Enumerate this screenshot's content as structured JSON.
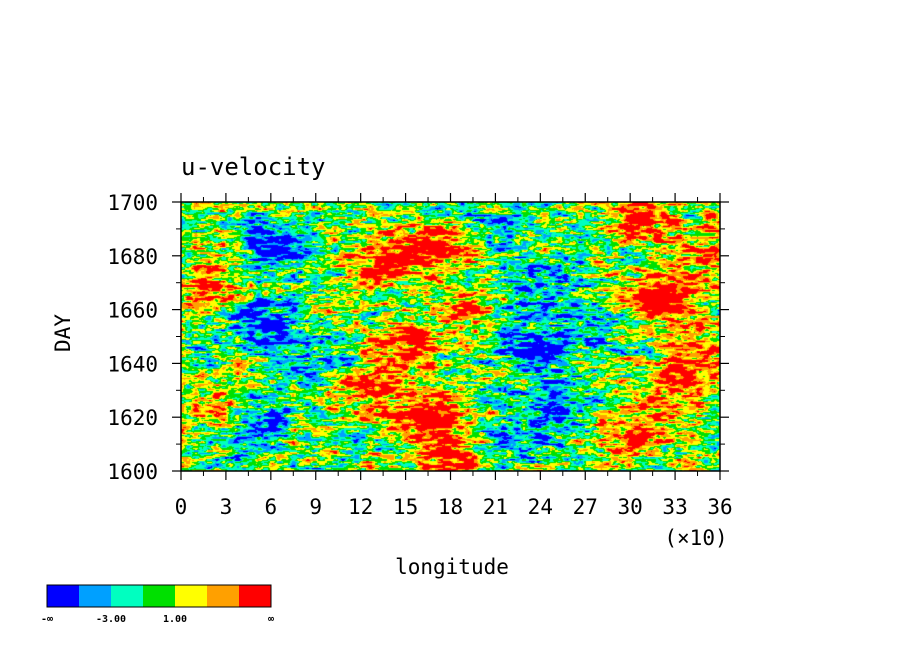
{
  "chart_data": {
    "type": "heatmap",
    "title": "u-velocity",
    "xlabel": "longitude",
    "ylabel": "DAY",
    "x_ticks": [
      "0",
      "3",
      "6",
      "9",
      "12",
      "15",
      "18",
      "21",
      "24",
      "27",
      "30",
      "33",
      "36"
    ],
    "x_multiplier": "(×10)",
    "xlim": [
      0,
      360
    ],
    "y_ticks": [
      "1600",
      "1620",
      "1640",
      "1660",
      "1680",
      "1700"
    ],
    "ylim": [
      1600,
      1700
    ],
    "colorbar": {
      "labels": [
        "-∞",
        "-3.00",
        "1.00",
        "∞"
      ],
      "colors": [
        "#0000ff",
        "#00a0ff",
        "#00ffc0",
        "#00e000",
        "#ffff00",
        "#ffa000",
        "#ff0000"
      ]
    },
    "hotspots": [
      {
        "lon": 30,
        "day": 1625,
        "amp": 1.2
      },
      {
        "lon": 20,
        "day": 1668,
        "amp": 1.5
      },
      {
        "lon": 55,
        "day": 1655,
        "amp": -1.6
      },
      {
        "lon": 45,
        "day": 1618,
        "amp": -1.5
      },
      {
        "lon": 60,
        "day": 1685,
        "amp": -1.5
      },
      {
        "lon": 85,
        "day": 1640,
        "amp": -1.1
      },
      {
        "lon": 120,
        "day": 1630,
        "amp": 1.4
      },
      {
        "lon": 135,
        "day": 1678,
        "amp": 1.6
      },
      {
        "lon": 150,
        "day": 1645,
        "amp": 1.7
      },
      {
        "lon": 165,
        "day": 1620,
        "amp": 2.1
      },
      {
        "lon": 170,
        "day": 1683,
        "amp": 1.8
      },
      {
        "lon": 180,
        "day": 1605,
        "amp": 1.6
      },
      {
        "lon": 190,
        "day": 1660,
        "amp": 1.0
      },
      {
        "lon": 210,
        "day": 1690,
        "amp": -1.0
      },
      {
        "lon": 220,
        "day": 1612,
        "amp": -1.0
      },
      {
        "lon": 235,
        "day": 1645,
        "amp": -1.8
      },
      {
        "lon": 240,
        "day": 1670,
        "amp": -1.3
      },
      {
        "lon": 255,
        "day": 1625,
        "amp": -1.4
      },
      {
        "lon": 275,
        "day": 1655,
        "amp": -0.9
      },
      {
        "lon": 300,
        "day": 1615,
        "amp": 1.4
      },
      {
        "lon": 320,
        "day": 1665,
        "amp": 2.4
      },
      {
        "lon": 330,
        "day": 1630,
        "amp": 1.5
      },
      {
        "lon": 310,
        "day": 1695,
        "amp": 1.5
      },
      {
        "lon": 350,
        "day": 1680,
        "amp": 1.2
      },
      {
        "lon": 345,
        "day": 1645,
        "amp": 1.3
      }
    ]
  }
}
